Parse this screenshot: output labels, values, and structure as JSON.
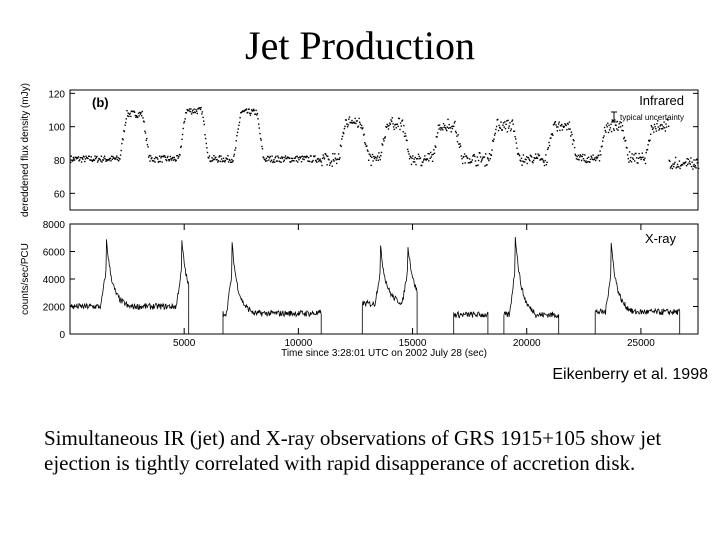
{
  "slide": {
    "title": "Jet Production",
    "citation": "Eikenberry et al. 1998",
    "caption": "Simultaneous IR (jet) and X-ray observations of GRS 1915+105 show jet ejection is tightly correlated with rapid disapperance of accretion disk."
  },
  "colors": {
    "data": "#000000",
    "background": "#ffffff"
  },
  "chart_data": [
    {
      "type": "scatter",
      "panel_label": "(b)",
      "legend": [
        "Infrared"
      ],
      "legend_note": "typical uncertainty",
      "ylabel": "dereddened flux density (mJy)",
      "xlim": [
        0,
        27500
      ],
      "ylim": [
        50,
        122
      ],
      "yticks": [
        60,
        80,
        100,
        120
      ],
      "baseline_mJy": 81,
      "flares": [
        {
          "t": 2800,
          "peak": 108
        },
        {
          "t": 5400,
          "peak": 110
        },
        {
          "t": 7800,
          "peak": 109
        },
        {
          "t": 12400,
          "peak": 103
        },
        {
          "t": 14200,
          "peak": 102
        },
        {
          "t": 16500,
          "peak": 101
        },
        {
          "t": 19000,
          "peak": 101
        },
        {
          "t": 21500,
          "peak": 101
        },
        {
          "t": 23800,
          "peak": 101
        },
        {
          "t": 25800,
          "peak": 101
        }
      ],
      "tail_level_mJy": 78,
      "tail_start": 26200
    },
    {
      "type": "line",
      "legend": [
        "X-ray"
      ],
      "ylabel": "counts/sec/PCU",
      "xlabel": "Time since 3:28:01 UTC on 2002 July 28 (sec)",
      "xlim": [
        0,
        27500
      ],
      "ylim": [
        0,
        8000
      ],
      "yticks": [
        0,
        2000,
        4000,
        6000,
        8000
      ],
      "xticks": [
        5000,
        10000,
        15000,
        20000,
        25000
      ],
      "segments": [
        {
          "start": 0,
          "end": 5200,
          "base": 2000,
          "spikes": [
            {
              "t": 1600,
              "peak": 6800
            },
            {
              "t": 4900,
              "peak": 6700
            }
          ]
        },
        {
          "start": 6700,
          "end": 11000,
          "base": 1500,
          "spikes": [
            {
              "t": 7100,
              "peak": 6500
            }
          ]
        },
        {
          "start": 12800,
          "end": 15200,
          "base": 2200,
          "spikes": [
            {
              "t": 13600,
              "peak": 6300
            },
            {
              "t": 14800,
              "peak": 6500
            }
          ]
        },
        {
          "start": 16800,
          "end": 18300,
          "base": 1400,
          "spikes": []
        },
        {
          "start": 19000,
          "end": 21400,
          "base": 1400,
          "spikes": [
            {
              "t": 19500,
              "peak": 7200
            }
          ]
        },
        {
          "start": 23000,
          "end": 26700,
          "base": 1600,
          "spikes": [
            {
              "t": 23700,
              "peak": 6600
            }
          ]
        }
      ]
    }
  ]
}
